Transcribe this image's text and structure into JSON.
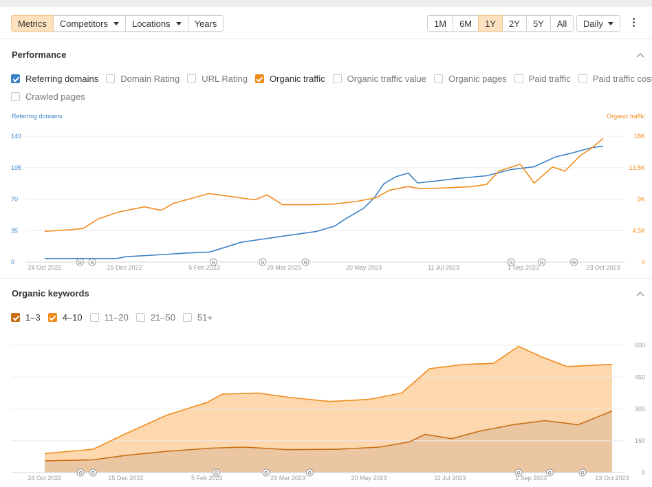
{
  "toolbar": {
    "tabs": [
      {
        "label": "Metrics",
        "active": true
      },
      {
        "label": "Competitors",
        "dropdown": true
      },
      {
        "label": "Locations",
        "dropdown": true
      },
      {
        "label": "Years"
      }
    ],
    "ranges": [
      {
        "label": "1M"
      },
      {
        "label": "6M"
      },
      {
        "label": "1Y",
        "active": true
      },
      {
        "label": "2Y"
      },
      {
        "label": "5Y"
      },
      {
        "label": "All"
      }
    ],
    "interval": "Daily"
  },
  "performance": {
    "title": "Performance",
    "checkboxes": [
      {
        "label": "Referring domains",
        "checked": true,
        "color": "#3c82c8"
      },
      {
        "label": "Domain Rating",
        "checked": false
      },
      {
        "label": "URL Rating",
        "checked": false
      },
      {
        "label": "Organic traffic",
        "checked": true,
        "color": "#f08c1e"
      },
      {
        "label": "Organic traffic value",
        "checked": false
      },
      {
        "label": "Organic pages",
        "checked": false
      },
      {
        "label": "Paid traffic",
        "checked": false
      },
      {
        "label": "Paid traffic cost",
        "checked": false
      },
      {
        "label": "Crawled pages",
        "checked": false
      }
    ],
    "left_axis_title": "Referring domains",
    "right_axis_title": "Organic traffic"
  },
  "keywords": {
    "title": "Organic keywords",
    "checkboxes": [
      {
        "label": "1–3",
        "checked": true,
        "color": "#c86e14"
      },
      {
        "label": "4–10",
        "checked": true,
        "color": "#f08c1e"
      },
      {
        "label": "11–20",
        "checked": false
      },
      {
        "label": "21–50",
        "checked": false
      },
      {
        "label": "51+",
        "checked": false
      }
    ]
  },
  "chart_data": [
    {
      "type": "line",
      "x_labels": [
        "24 Oct 2022",
        "15 Dec 2022",
        "5 Feb 2023",
        "29 Mar 2023",
        "20 May 2023",
        "11 Jul 2023",
        "1 Sep 2023",
        "23 Oct 2023"
      ],
      "x_range": [
        "2022-10-24",
        "2023-10-23"
      ],
      "left_axis": {
        "title": "Referring domains",
        "ticks": [
          "0",
          "35",
          "70",
          "105",
          "140"
        ],
        "range": [
          0,
          140
        ],
        "color": "#3c82c8"
      },
      "right_axis": {
        "title": "Organic traffic",
        "ticks": [
          "0",
          "4.5K",
          "9K",
          "13.5K",
          "18K"
        ],
        "range": [
          0,
          18000
        ],
        "color": "#f08c1e"
      },
      "google_update_markers": [
        "2022-11-16",
        "2022-11-24",
        "2023-02-11",
        "2023-03-15",
        "2023-04-12",
        "2023-08-24",
        "2023-09-13",
        "2023-10-04"
      ],
      "series": [
        {
          "name": "Referring domains",
          "axis": "left",
          "color": "#3c82c8",
          "points": [
            [
              "2022-10-24",
              4
            ],
            [
              "2022-12-10",
              4
            ],
            [
              "2022-12-16",
              6
            ],
            [
              "2023-01-06",
              8
            ],
            [
              "2023-01-24",
              10
            ],
            [
              "2023-02-08",
              11
            ],
            [
              "2023-02-14",
              14
            ],
            [
              "2023-03-01",
              22
            ],
            [
              "2023-03-29",
              29
            ],
            [
              "2023-04-19",
              34
            ],
            [
              "2023-05-01",
              40
            ],
            [
              "2023-05-08",
              48
            ],
            [
              "2023-05-20",
              60
            ],
            [
              "2023-05-27",
              72
            ],
            [
              "2023-06-02",
              87
            ],
            [
              "2023-06-10",
              95
            ],
            [
              "2023-06-18",
              99
            ],
            [
              "2023-06-24",
              88
            ],
            [
              "2023-07-05",
              90
            ],
            [
              "2023-07-20",
              93
            ],
            [
              "2023-08-08",
              96
            ],
            [
              "2023-08-24",
              103
            ],
            [
              "2023-09-08",
              106
            ],
            [
              "2023-09-22",
              117
            ],
            [
              "2023-10-02",
              121
            ],
            [
              "2023-10-15",
              127
            ],
            [
              "2023-10-23",
              129
            ]
          ]
        },
        {
          "name": "Organic traffic",
          "axis": "right",
          "color": "#f08c1e",
          "points": [
            [
              "2022-10-24",
              4400
            ],
            [
              "2022-11-08",
              4600
            ],
            [
              "2022-11-18",
              4800
            ],
            [
              "2022-11-28",
              6200
            ],
            [
              "2022-12-12",
              7200
            ],
            [
              "2022-12-28",
              7900
            ],
            [
              "2023-01-08",
              7400
            ],
            [
              "2023-01-16",
              8400
            ],
            [
              "2023-02-08",
              9800
            ],
            [
              "2023-02-18",
              9500
            ],
            [
              "2023-03-10",
              8900
            ],
            [
              "2023-03-18",
              9600
            ],
            [
              "2023-03-28",
              8200
            ],
            [
              "2023-04-16",
              8200
            ],
            [
              "2023-05-01",
              8300
            ],
            [
              "2023-05-16",
              8700
            ],
            [
              "2023-05-28",
              9200
            ],
            [
              "2023-06-06",
              10300
            ],
            [
              "2023-06-18",
              10800
            ],
            [
              "2023-06-26",
              10500
            ],
            [
              "2023-07-12",
              10600
            ],
            [
              "2023-07-30",
              10800
            ],
            [
              "2023-08-08",
              11100
            ],
            [
              "2023-08-16",
              13000
            ],
            [
              "2023-08-30",
              14000
            ],
            [
              "2023-09-08",
              11300
            ],
            [
              "2023-09-20",
              13600
            ],
            [
              "2023-09-28",
              13000
            ],
            [
              "2023-10-08",
              15200
            ],
            [
              "2023-10-16",
              16400
            ],
            [
              "2023-10-23",
              17700
            ]
          ]
        }
      ]
    },
    {
      "type": "area",
      "x_labels": [
        "24 Oct 2022",
        "15 Dec 2022",
        "5 Feb 2023",
        "29 Mar 2023",
        "20 May 2023",
        "11 Jul 2023",
        "1 Sep 2023",
        "23 Oct 2023"
      ],
      "x_range": [
        "2022-10-24",
        "2023-10-23"
      ],
      "y_ticks": [
        "0",
        "150",
        "300",
        "450",
        "600"
      ],
      "ylim": [
        0,
        600
      ],
      "stacked": true,
      "google_update_markers": [
        "2022-11-16",
        "2022-11-24",
        "2023-02-11",
        "2023-03-15",
        "2023-04-12",
        "2023-08-24",
        "2023-09-13",
        "2023-10-04"
      ],
      "series": [
        {
          "name": "1–3",
          "color": "#c86e14",
          "fill": "#eac6a3",
          "points": [
            [
              "2022-10-24",
              55
            ],
            [
              "2022-11-24",
              60
            ],
            [
              "2022-12-14",
              80
            ],
            [
              "2023-01-10",
              100
            ],
            [
              "2023-02-08",
              115
            ],
            [
              "2023-03-01",
              120
            ],
            [
              "2023-03-29",
              108
            ],
            [
              "2023-04-30",
              110
            ],
            [
              "2023-05-27",
              120
            ],
            [
              "2023-06-15",
              145
            ],
            [
              "2023-06-25",
              180
            ],
            [
              "2023-07-12",
              160
            ],
            [
              "2023-07-30",
              195
            ],
            [
              "2023-08-20",
              225
            ],
            [
              "2023-09-10",
              245
            ],
            [
              "2023-10-01",
              225
            ],
            [
              "2023-10-23",
              290
            ]
          ]
        },
        {
          "name": "4–10",
          "color": "#f08c1e",
          "fill": "#fdd7ad",
          "points": [
            [
              "2022-10-24",
              90
            ],
            [
              "2022-11-24",
              110
            ],
            [
              "2022-12-14",
              180
            ],
            [
              "2023-01-10",
              270
            ],
            [
              "2023-02-05",
              330
            ],
            [
              "2023-02-15",
              370
            ],
            [
              "2023-03-10",
              375
            ],
            [
              "2023-03-29",
              355
            ],
            [
              "2023-04-25",
              335
            ],
            [
              "2023-05-20",
              345
            ],
            [
              "2023-06-10",
              375
            ],
            [
              "2023-06-28",
              490
            ],
            [
              "2023-07-20",
              510
            ],
            [
              "2023-08-08",
              515
            ],
            [
              "2023-08-24",
              595
            ],
            [
              "2023-09-08",
              545
            ],
            [
              "2023-09-24",
              500
            ],
            [
              "2023-10-23",
              510
            ]
          ]
        }
      ]
    }
  ]
}
